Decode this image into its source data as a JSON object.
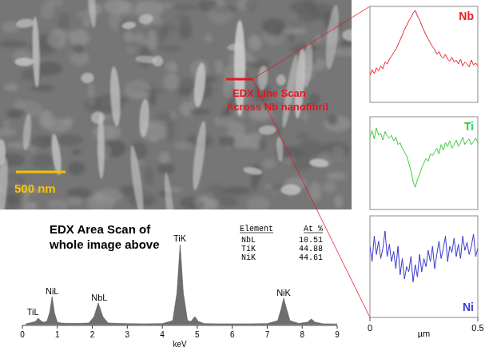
{
  "image": {
    "annotation": [
      "EDX Line Scan",
      "Across Nb nanofibril"
    ],
    "scale_bar": "500 nm"
  },
  "table": {
    "headers": [
      "Element",
      "At %"
    ],
    "rows": [
      [
        "NbL",
        10.51
      ],
      [
        "TiK",
        44.88
      ],
      [
        "NiK",
        44.61
      ]
    ]
  },
  "chart_data": [
    {
      "type": "area",
      "title": "EDX Area Scan of whole image above",
      "x_label": "keV",
      "x": [
        0.1,
        0.2,
        0.3,
        0.38,
        0.45,
        0.5,
        0.55,
        0.62,
        0.7,
        0.78,
        0.85,
        0.92,
        1.0,
        1.1,
        1.3,
        1.6,
        1.9,
        2.05,
        2.17,
        2.3,
        2.45,
        2.7,
        3.0,
        3.5,
        4.0,
        4.3,
        4.42,
        4.51,
        4.6,
        4.72,
        4.82,
        4.93,
        5.03,
        5.2,
        5.6,
        6.0,
        6.5,
        7.0,
        7.3,
        7.4,
        7.47,
        7.55,
        7.65,
        7.9,
        8.15,
        8.26,
        8.37,
        8.6,
        9.0
      ],
      "values": [
        1,
        2,
        3,
        4,
        8,
        6,
        4,
        3,
        4,
        15,
        35,
        14,
        3,
        2,
        1.5,
        1.5,
        2,
        10,
        27,
        10,
        2,
        1.5,
        1.2,
        1,
        1.2,
        5,
        40,
        100,
        40,
        5,
        4,
        10,
        4,
        1.2,
        1,
        1,
        1,
        1.2,
        5,
        20,
        33,
        20,
        5,
        1.5,
        3,
        7,
        3,
        1,
        0.8
      ],
      "color": "#6e6e6e",
      "xlim": [
        0,
        9
      ],
      "xticks": [
        0,
        1,
        2,
        3,
        4,
        5,
        6,
        7,
        8,
        9
      ],
      "ylim": [
        0,
        100
      ],
      "tick_labels": "x",
      "annotations": [
        {
          "text": "TiL",
          "x": 0.3,
          "y": 12
        },
        {
          "text": "NiL",
          "x": 0.85,
          "y": 38
        },
        {
          "text": "NbL",
          "x": 2.2,
          "y": 30
        },
        {
          "text": "TiK",
          "x": 4.5,
          "y": 104
        },
        {
          "text": "NiK",
          "x": 7.47,
          "y": 36
        }
      ]
    },
    {
      "type": "line",
      "title": "Nb",
      "color": "#e8262a",
      "xlim": [
        0,
        0.5
      ],
      "ylim": [
        0,
        100
      ],
      "tick_labels": false,
      "x": [
        0,
        0.01,
        0.02,
        0.03,
        0.04,
        0.05,
        0.06,
        0.07,
        0.08,
        0.09,
        0.1,
        0.11,
        0.12,
        0.13,
        0.14,
        0.15,
        0.16,
        0.17,
        0.18,
        0.19,
        0.2,
        0.21,
        0.22,
        0.23,
        0.24,
        0.25,
        0.26,
        0.27,
        0.28,
        0.29,
        0.3,
        0.31,
        0.32,
        0.33,
        0.34,
        0.35,
        0.36,
        0.37,
        0.38,
        0.39,
        0.4,
        0.41,
        0.42,
        0.43,
        0.44,
        0.45,
        0.46,
        0.47,
        0.48,
        0.49,
        0.5
      ],
      "values": [
        28,
        34,
        30,
        36,
        33,
        38,
        35,
        42,
        40,
        45,
        48,
        52,
        55,
        60,
        65,
        70,
        76,
        80,
        85,
        88,
        93,
        96,
        90,
        86,
        80,
        75,
        70,
        66,
        62,
        58,
        55,
        50,
        53,
        48,
        46,
        50,
        45,
        43,
        47,
        42,
        44,
        40,
        45,
        38,
        42,
        40,
        37,
        44,
        39,
        41,
        38
      ]
    },
    {
      "type": "line",
      "title": "Ti",
      "color": "#3ccc3c",
      "xlim": [
        0,
        0.5
      ],
      "ylim": [
        0,
        100
      ],
      "tick_labels": false,
      "x": [
        0,
        0.01,
        0.02,
        0.03,
        0.04,
        0.05,
        0.06,
        0.07,
        0.08,
        0.09,
        0.1,
        0.11,
        0.12,
        0.13,
        0.14,
        0.15,
        0.16,
        0.17,
        0.18,
        0.19,
        0.2,
        0.21,
        0.22,
        0.23,
        0.24,
        0.25,
        0.26,
        0.27,
        0.28,
        0.29,
        0.3,
        0.31,
        0.32,
        0.33,
        0.34,
        0.35,
        0.36,
        0.37,
        0.38,
        0.39,
        0.4,
        0.41,
        0.42,
        0.43,
        0.44,
        0.45,
        0.46,
        0.47,
        0.48,
        0.49,
        0.5
      ],
      "values": [
        78,
        85,
        76,
        88,
        80,
        82,
        75,
        84,
        79,
        77,
        80,
        74,
        78,
        70,
        72,
        66,
        62,
        58,
        50,
        42,
        30,
        24,
        32,
        38,
        45,
        50,
        55,
        52,
        60,
        58,
        62,
        66,
        60,
        70,
        64,
        72,
        68,
        74,
        66,
        70,
        75,
        68,
        72,
        78,
        70,
        74,
        76,
        70,
        73,
        77,
        72
      ]
    },
    {
      "type": "line",
      "title": "Ni",
      "color": "#3a3ad0",
      "xlim": [
        0,
        0.5
      ],
      "ylim": [
        0,
        100
      ],
      "xticks": [
        0,
        0.5
      ],
      "x_label": "µm",
      "tick_labels": "x",
      "x": [
        0,
        0.01,
        0.02,
        0.03,
        0.04,
        0.05,
        0.06,
        0.07,
        0.08,
        0.09,
        0.1,
        0.11,
        0.12,
        0.13,
        0.14,
        0.15,
        0.16,
        0.17,
        0.18,
        0.19,
        0.2,
        0.21,
        0.22,
        0.23,
        0.24,
        0.25,
        0.26,
        0.27,
        0.28,
        0.29,
        0.3,
        0.31,
        0.32,
        0.33,
        0.34,
        0.35,
        0.36,
        0.37,
        0.38,
        0.39,
        0.4,
        0.41,
        0.42,
        0.43,
        0.44,
        0.45,
        0.46,
        0.47,
        0.48,
        0.49,
        0.5
      ],
      "values": [
        70,
        55,
        80,
        62,
        75,
        58,
        68,
        85,
        60,
        72,
        55,
        65,
        48,
        70,
        42,
        58,
        38,
        50,
        45,
        60,
        35,
        52,
        40,
        62,
        45,
        58,
        50,
        66,
        55,
        70,
        48,
        62,
        75,
        58,
        68,
        80,
        55,
        70,
        64,
        78,
        60,
        72,
        58,
        80,
        66,
        74,
        62,
        70,
        82,
        60,
        68
      ]
    }
  ]
}
